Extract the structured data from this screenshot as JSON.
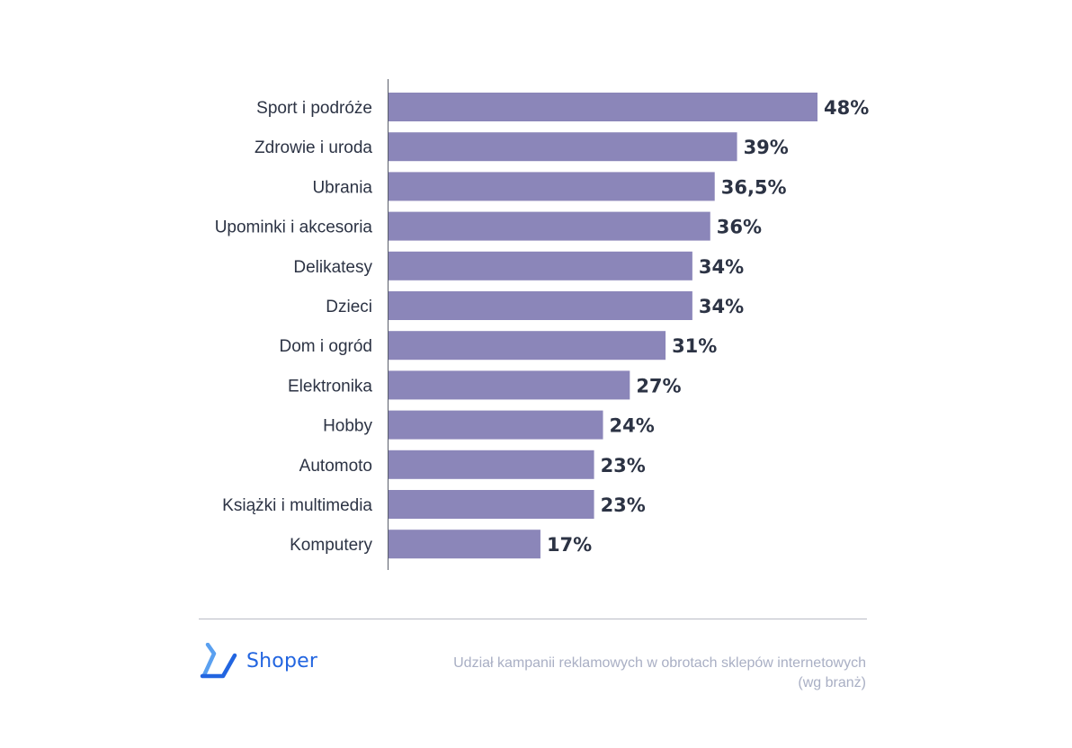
{
  "chart_data": {
    "type": "bar",
    "orientation": "horizontal",
    "categories": [
      "Sport i podróże",
      "Zdrowie i uroda",
      "Ubrania",
      "Upominki i akcesoria",
      "Delikatesy",
      "Dzieci",
      "Dom i ogród",
      "Elektronika",
      "Hobby",
      "Automoto",
      "Książki i multimedia",
      "Komputery"
    ],
    "values": [
      48,
      39,
      36.5,
      36,
      34,
      34,
      31,
      27,
      24,
      23,
      23,
      17
    ],
    "value_labels": [
      "48%",
      "39%",
      "36,5%",
      "36%",
      "34%",
      "34%",
      "31%",
      "27%",
      "24%",
      "23%",
      "23%",
      "17%"
    ],
    "xlim": [
      0,
      48
    ],
    "grid": false,
    "bar_color": "#8b86b9"
  },
  "footer": {
    "brand": "Shoper",
    "brand_color": "#2265e0",
    "logo_icon": "shoper-logo-icon",
    "caption_line1": "Udział kampanii reklamowych w obrotach sklepów internetowych",
    "caption_line2": "(wg branż)"
  }
}
